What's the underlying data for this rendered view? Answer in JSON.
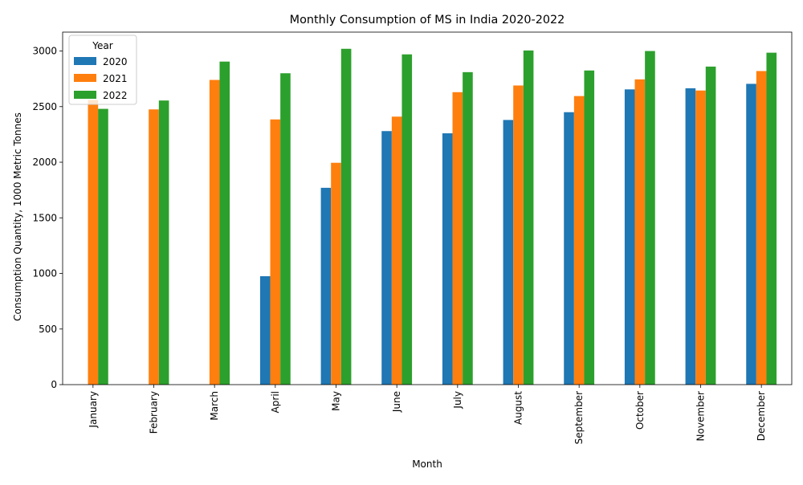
{
  "chart_data": {
    "type": "bar",
    "title": "Monthly Consumption of MS in India 2020-2022",
    "xlabel": "Month",
    "ylabel": "Consumption Quantity, 1000 Metric Tonnes",
    "ylim": [
      0,
      3170
    ],
    "yticks": [
      0,
      500,
      1000,
      1500,
      2000,
      2500,
      3000
    ],
    "grid": false,
    "legend": {
      "title": "Year",
      "placement": "top-left"
    },
    "categories": [
      "January",
      "February",
      "March",
      "April",
      "May",
      "June",
      "July",
      "August",
      "September",
      "October",
      "November",
      "December"
    ],
    "series": [
      {
        "name": "2020",
        "color": "#1f77b4",
        "values": [
          null,
          null,
          null,
          975,
          1770,
          2280,
          2260,
          2380,
          2450,
          2655,
          2665,
          2705
        ]
      },
      {
        "name": "2021",
        "color": "#ff7f0e",
        "values": [
          2560,
          2475,
          2740,
          2385,
          1995,
          2410,
          2630,
          2690,
          2595,
          2745,
          2645,
          2820
        ]
      },
      {
        "name": "2022",
        "color": "#2ca02c",
        "values": [
          2480,
          2555,
          2905,
          2800,
          3020,
          2970,
          2810,
          3005,
          2825,
          3000,
          2860,
          2985
        ]
      }
    ]
  }
}
